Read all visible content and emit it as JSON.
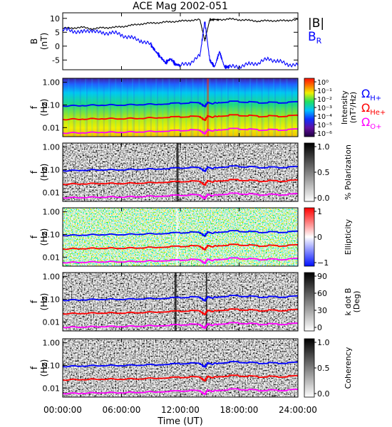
{
  "title": "ACE Mag 2002-051",
  "xlabel": "Time (UT)",
  "x_ticks": [
    "00:00:00",
    "06:00:00",
    "12:00:00",
    "18:00:00",
    "24:00:00"
  ],
  "legend_top": {
    "b_label": "|B|",
    "br_label": "B",
    "br_sub": "R"
  },
  "colors": {
    "b_total": "#000000",
    "b_r": "#0000ff",
    "omega_h": "#0000ff",
    "omega_he": "#ff0000",
    "omega_o": "#ff00ff"
  },
  "legend_right": {
    "omega_h": "Ω",
    "omega_h_sub": "H+",
    "omega_he": "Ω",
    "omega_he_sub": "He+",
    "omega_o": "Ω",
    "omega_o_sub": "O+"
  },
  "chart_data": [
    {
      "type": "line",
      "ylabel_top": "B",
      "ylabel_bottom": "(nT)",
      "ylim": [
        -8.5,
        12
      ],
      "y_ticks": [
        "10",
        "5",
        "0",
        "-5"
      ],
      "x_range_hours": [
        0,
        24
      ],
      "series": [
        {
          "name": "|B|",
          "x": [
            0,
            1,
            2,
            3,
            4,
            5,
            6,
            7,
            8,
            9,
            10,
            11,
            12,
            13,
            14,
            14.5,
            15,
            15.5,
            16,
            17,
            18,
            19,
            20,
            21,
            22,
            23,
            24
          ],
          "values": [
            6.5,
            6.5,
            6.8,
            6.2,
            6.6,
            6.7,
            7,
            7.5,
            8,
            8.3,
            8.5,
            8.8,
            9,
            9.3,
            9.5,
            2,
            9.5,
            9.6,
            9.5,
            9.8,
            9.5,
            9.3,
            9,
            9.2,
            9.1,
            9.3,
            9.5
          ]
        },
        {
          "name": "B_R",
          "x": [
            0,
            1,
            2,
            3,
            4,
            5,
            6,
            7,
            8,
            9,
            9.5,
            10,
            10.5,
            11,
            11.5,
            12,
            13,
            14,
            14.5,
            15,
            15.5,
            16,
            16.5,
            17,
            18,
            19,
            20,
            21,
            22,
            23,
            24
          ],
          "values": [
            6,
            5.5,
            5,
            5.8,
            4.5,
            5,
            4,
            3,
            2,
            0.5,
            -2,
            -4,
            -6,
            -4.5,
            -6.5,
            -7,
            -6,
            -3.5,
            9,
            -5,
            -7.5,
            -2,
            -7.5,
            -7.5,
            -7.3,
            -6.5,
            -6,
            -4.5,
            -5.5,
            -6.5,
            -7
          ]
        }
      ]
    },
    {
      "type": "heatmap",
      "ylabel_top": "f",
      "ylabel_bottom": "(Hz)",
      "y_ticks": [
        "1.00",
        "0.10",
        "0.01"
      ],
      "colorbar_label_top": "Intensity",
      "colorbar_label_bottom": "(nT²/Hz)",
      "colorbar_ticks": [
        "10⁰",
        "10⁻¹",
        "10⁻²",
        "10⁻³",
        "10⁻⁴",
        "10⁻⁵",
        "10⁻⁶"
      ]
    },
    {
      "type": "heatmap",
      "ylabel_top": "f",
      "ylabel_bottom": "(Hz)",
      "y_ticks": [
        "1.00",
        "0.10",
        "0.01"
      ],
      "colorbar_label_top": "% Polarization",
      "colorbar_label_bottom": "",
      "colorbar_ticks": [
        "1.0",
        "0.5",
        "0.0"
      ]
    },
    {
      "type": "heatmap",
      "ylabel_top": "f",
      "ylabel_bottom": "(Hz)",
      "y_ticks": [
        "1.00",
        "0.10",
        "0.01"
      ],
      "colorbar_label_top": "Ellipticity",
      "colorbar_label_bottom": "",
      "colorbar_ticks": [
        "1",
        "0",
        "−1"
      ]
    },
    {
      "type": "heatmap",
      "ylabel_top": "f",
      "ylabel_bottom": "(Hz)",
      "y_ticks": [
        "1.00",
        "0.10",
        "0.01"
      ],
      "colorbar_label_top": "k dot B",
      "colorbar_label_bottom": "(Deg)",
      "colorbar_ticks": [
        "90",
        "60",
        "30",
        "0"
      ]
    },
    {
      "type": "heatmap",
      "ylabel_top": "f",
      "ylabel_bottom": "(Hz)",
      "y_ticks": [
        "1.00",
        "0.10",
        "0.01"
      ],
      "colorbar_label_top": "Coherency",
      "colorbar_label_bottom": "",
      "colorbar_ticks": [
        "1.0",
        "0.5",
        "0.0"
      ]
    }
  ],
  "gyro_lines": {
    "x_hours": [
      0,
      2,
      4,
      6,
      8,
      10,
      11,
      12,
      13,
      14,
      14.5,
      14.8,
      15.2,
      16,
      17,
      18,
      19,
      20,
      21,
      22,
      23,
      24
    ],
    "omega_h_hz": [
      0.09,
      0.095,
      0.1,
      0.1,
      0.105,
      0.11,
      0.115,
      0.12,
      0.125,
      0.12,
      0.085,
      0.13,
      0.115,
      0.13,
      0.14,
      0.14,
      0.135,
      0.125,
      0.13,
      0.125,
      0.13,
      0.135
    ],
    "omega_he_hz": [
      0.023,
      0.024,
      0.025,
      0.025,
      0.026,
      0.028,
      0.029,
      0.03,
      0.031,
      0.03,
      0.021,
      0.033,
      0.029,
      0.033,
      0.035,
      0.035,
      0.034,
      0.031,
      0.033,
      0.031,
      0.033,
      0.034
    ],
    "omega_o_hz": [
      0.0058,
      0.006,
      0.0063,
      0.0063,
      0.0066,
      0.007,
      0.0072,
      0.0075,
      0.0078,
      0.0075,
      0.0053,
      0.0082,
      0.0072,
      0.0082,
      0.0088,
      0.0088,
      0.0085,
      0.0078,
      0.0082,
      0.0078,
      0.0082,
      0.0085
    ]
  }
}
